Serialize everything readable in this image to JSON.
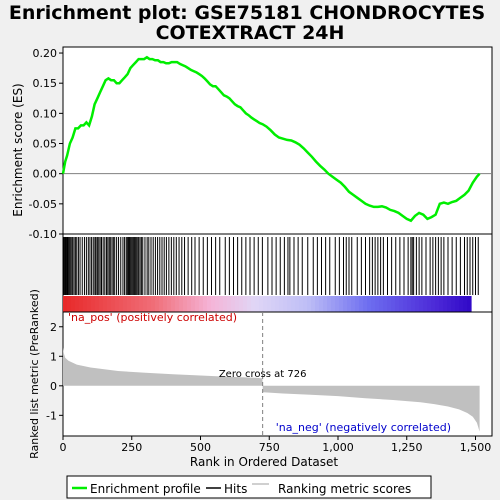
{
  "chart_data": {
    "type": "line",
    "title_line1": "Enrichment plot: GSE75181 CHONDROCYTES",
    "title_line2": "COTEXTRACT 24H",
    "top_panel": {
      "ylabel": "Enrichment score (ES)",
      "ylim": [
        -0.1,
        0.21
      ],
      "yticks": [
        -0.1,
        -0.05,
        0.0,
        0.05,
        0.1,
        0.15,
        0.2
      ],
      "ytick_labels": [
        "-0.10",
        "-0.05",
        "0.00",
        "0.05",
        "0.10",
        "0.15",
        "0.20"
      ],
      "series": [
        {
          "name": "Enrichment profile",
          "color": "#00ee00",
          "x": [
            0,
            8,
            15,
            25,
            35,
            45,
            55,
            65,
            75,
            85,
            95,
            105,
            115,
            125,
            135,
            145,
            155,
            165,
            175,
            185,
            195,
            205,
            215,
            225,
            235,
            245,
            255,
            265,
            275,
            285,
            295,
            305,
            315,
            325,
            335,
            345,
            355,
            365,
            375,
            385,
            395,
            405,
            415,
            425,
            435,
            445,
            455,
            465,
            475,
            485,
            495,
            505,
            515,
            525,
            535,
            545,
            555,
            565,
            575,
            585,
            595,
            605,
            615,
            625,
            635,
            645,
            655,
            665,
            675,
            685,
            695,
            705,
            715,
            726,
            740,
            755,
            770,
            785,
            800,
            815,
            830,
            845,
            860,
            875,
            890,
            905,
            920,
            935,
            950,
            965,
            980,
            995,
            1010,
            1025,
            1040,
            1055,
            1070,
            1085,
            1100,
            1115,
            1130,
            1145,
            1160,
            1175,
            1190,
            1205,
            1220,
            1235,
            1250,
            1265,
            1280,
            1295,
            1310,
            1325,
            1340,
            1355,
            1370,
            1385,
            1400,
            1415,
            1430,
            1445,
            1460,
            1475,
            1490,
            1505,
            1515
          ],
          "y": [
            0.0,
            0.02,
            0.03,
            0.05,
            0.06,
            0.075,
            0.075,
            0.08,
            0.08,
            0.085,
            0.08,
            0.095,
            0.115,
            0.125,
            0.135,
            0.145,
            0.155,
            0.158,
            0.155,
            0.155,
            0.15,
            0.15,
            0.155,
            0.16,
            0.165,
            0.175,
            0.18,
            0.185,
            0.19,
            0.19,
            0.19,
            0.193,
            0.19,
            0.19,
            0.188,
            0.188,
            0.185,
            0.185,
            0.183,
            0.183,
            0.185,
            0.185,
            0.185,
            0.182,
            0.18,
            0.178,
            0.175,
            0.172,
            0.17,
            0.168,
            0.165,
            0.162,
            0.158,
            0.153,
            0.148,
            0.145,
            0.145,
            0.14,
            0.135,
            0.13,
            0.128,
            0.125,
            0.12,
            0.115,
            0.112,
            0.11,
            0.105,
            0.1,
            0.097,
            0.093,
            0.09,
            0.087,
            0.084,
            0.082,
            0.078,
            0.072,
            0.065,
            0.06,
            0.058,
            0.056,
            0.055,
            0.052,
            0.048,
            0.042,
            0.035,
            0.028,
            0.02,
            0.013,
            0.007,
            0.0,
            -0.005,
            -0.01,
            -0.015,
            -0.022,
            -0.03,
            -0.035,
            -0.04,
            -0.045,
            -0.05,
            -0.053,
            -0.055,
            -0.055,
            -0.054,
            -0.056,
            -0.06,
            -0.062,
            -0.065,
            -0.07,
            -0.075,
            -0.078,
            -0.07,
            -0.065,
            -0.068,
            -0.075,
            -0.072,
            -0.068,
            -0.05,
            -0.048,
            -0.05,
            -0.047,
            -0.045,
            -0.04,
            -0.035,
            -0.028,
            -0.015,
            -0.005,
            0.0
          ]
        }
      ]
    },
    "hits": {
      "name": "Hits",
      "positions": [
        3,
        6,
        9,
        12,
        15,
        18,
        22,
        26,
        30,
        35,
        40,
        45,
        50,
        56,
        62,
        70,
        78,
        85,
        92,
        98,
        104,
        110,
        116,
        120,
        125,
        130,
        135,
        140,
        146,
        152,
        158,
        163,
        168,
        172,
        178,
        183,
        188,
        195,
        202,
        210,
        218,
        224,
        230,
        234,
        238,
        242,
        246,
        250,
        254,
        258,
        262,
        266,
        270,
        275,
        280,
        285,
        290,
        298,
        306,
        312,
        320,
        328,
        336,
        344,
        352,
        360,
        368,
        376,
        385,
        394,
        403,
        412,
        422,
        432,
        442,
        455,
        468,
        480,
        495,
        510,
        525,
        540,
        555,
        570,
        590,
        605,
        620,
        635,
        650,
        665,
        680,
        695,
        710,
        725,
        745,
        760,
        775,
        790,
        805,
        818,
        825,
        840,
        855,
        870,
        890,
        910,
        925,
        940,
        955,
        970,
        990,
        1005,
        1020,
        1030,
        1040,
        1050,
        1070,
        1085,
        1100,
        1115,
        1125,
        1135,
        1145,
        1155,
        1165,
        1180,
        1195,
        1210,
        1225,
        1240,
        1255,
        1265,
        1270,
        1275,
        1285,
        1295,
        1305,
        1320,
        1335,
        1345,
        1355,
        1365,
        1375,
        1385,
        1400,
        1415,
        1430,
        1445,
        1460,
        1470,
        1480,
        1490,
        1500,
        1510
      ]
    },
    "heat_bar": {
      "colors": [
        "#e82a2a",
        "#f0a8c8",
        "#d8d0f4",
        "#6b6bf2",
        "#3a0fc8"
      ],
      "zero_cross": 726
    },
    "bottom_panel": {
      "ylabel": "Ranked list metric (PreRanked)",
      "xlabel": "Rank in Ordered Dataset",
      "ylim": [
        -1.7,
        2.5
      ],
      "yticks": [
        -1,
        0,
        1,
        2
      ],
      "xlim": [
        0,
        1560
      ],
      "xticks": [
        0,
        250,
        500,
        750,
        1000,
        1250,
        1500
      ],
      "xtick_labels": [
        "0",
        "250",
        "500",
        "750",
        "1,000",
        "1,250",
        "1,500"
      ],
      "zero_cross_label": "Zero cross at 726",
      "pos_label": "'na_pos' (positively correlated)",
      "neg_label": "'na_neg' (negatively correlated)",
      "metric_x": [
        0,
        3,
        8,
        20,
        50,
        100,
        200,
        300,
        400,
        500,
        600,
        700,
        725,
        727,
        800,
        900,
        1000,
        1100,
        1200,
        1300,
        1350,
        1400,
        1440,
        1470,
        1490,
        1505,
        1515
      ],
      "metric_y": [
        1.3,
        1.1,
        0.95,
        0.85,
        0.72,
        0.62,
        0.5,
        0.44,
        0.39,
        0.35,
        0.31,
        0.27,
        0.25,
        -0.22,
        -0.26,
        -0.3,
        -0.35,
        -0.42,
        -0.48,
        -0.56,
        -0.62,
        -0.7,
        -0.8,
        -0.92,
        -1.05,
        -1.25,
        -1.55
      ]
    },
    "legend": {
      "items": [
        {
          "label": "Enrichment profile",
          "color": "#00ee00"
        },
        {
          "label": "Hits",
          "color": "#000000"
        },
        {
          "label": "Ranking metric scores",
          "color": "#c0c0c0"
        }
      ]
    }
  }
}
